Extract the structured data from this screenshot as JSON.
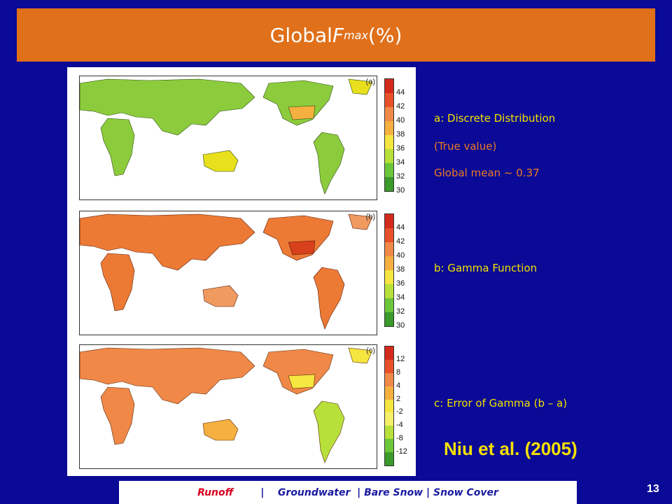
{
  "title": {
    "prefix": "Global ",
    "f": "F",
    "sub": "max",
    "suffix": " (%)"
  },
  "panels": [
    {
      "letter": "(a)",
      "ticks": [
        "44",
        "42",
        "40",
        "38",
        "36",
        "34",
        "32",
        "30"
      ],
      "theme": "green"
    },
    {
      "letter": "(b)",
      "ticks": [
        "44",
        "42",
        "40",
        "38",
        "36",
        "34",
        "32",
        "30"
      ],
      "theme": "orange"
    },
    {
      "letter": "(c)",
      "ticks": [
        "12",
        "8",
        "4",
        "2",
        "-2",
        "-4",
        "-8",
        "-12"
      ],
      "theme": "error"
    }
  ],
  "colorbar_colors": {
    "fmax": [
      "#d42a1c",
      "#e8502a",
      "#f08848",
      "#f5b040",
      "#f5e640",
      "#b8e03a",
      "#6cc63a",
      "#3a9a2a"
    ],
    "error": [
      "#d42a1c",
      "#e8502a",
      "#f08848",
      "#f5b040",
      "#f5e640",
      "#f5f06a",
      "#b8e03a",
      "#6cc63a",
      "#3a9a2a"
    ]
  },
  "captions": {
    "a_line1": "a: Discrete Distribution",
    "a_line2": "(True value)",
    "a_line3": "Global mean ~ 0.37",
    "b": "b: Gamma Function",
    "c": "c: Error of Gamma (b – a)"
  },
  "citation": "Niu et al. (2005)",
  "nav": {
    "runoff": "Runoff",
    "sep1": "        |    ",
    "groundwater": "Groundwater",
    "sep2": "  | ",
    "bare_snow": "Bare Snow",
    "sep3": " | ",
    "snow_cover": "Snow Cover"
  },
  "slide_number": "13",
  "colors": {
    "background": "#0a0a96",
    "title_bar": "#e0701a",
    "caption_yellow": "#f5e000",
    "caption_orange": "#f07a20"
  }
}
